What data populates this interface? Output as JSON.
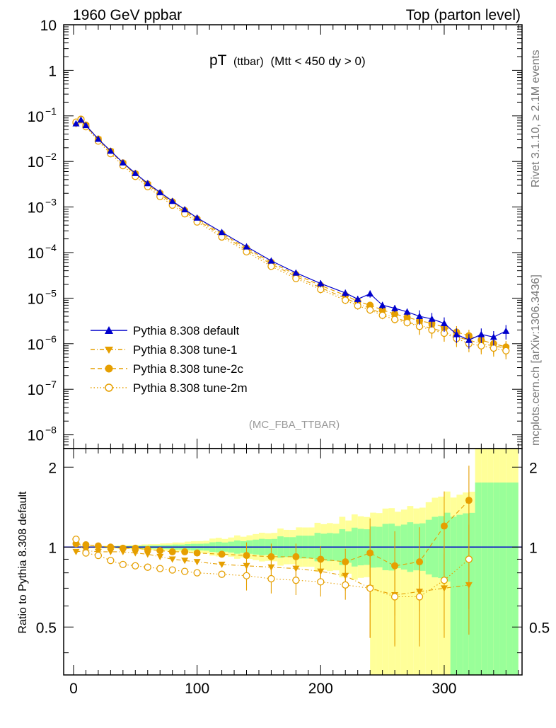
{
  "header": {
    "left": "1960 GeV ppbar",
    "right": "Top (parton level)"
  },
  "side_labels": {
    "rivet": "Rivet 3.1.10, ≥ 2.1M events",
    "mcplots": "mcplots.cern.ch [arXiv:1306.3436]"
  },
  "plot_title": {
    "main": "pT",
    "sub": "(ttbar)",
    "rest": "(Mtt < 450 dy > 0)"
  },
  "analysis_tag": "(MC_FBA_TTBAR)",
  "ratio_ylabel": "Ratio to Pythia 8.308 default",
  "colors": {
    "default": "#0000cc",
    "tunes": "#e69f00",
    "band_yellow": "#ffff99",
    "band_green": "#99ff99"
  },
  "chart_data": {
    "type": "scatter",
    "top_panel": {
      "yscale": "log",
      "ylim": [
        5e-09,
        10
      ],
      "yticks": [
        {
          "value": 10,
          "label": "10"
        },
        {
          "value": 1,
          "label": "1"
        },
        {
          "value": 0.1,
          "label": "10",
          "exp": "−1"
        },
        {
          "value": 0.01,
          "label": "10",
          "exp": "−2"
        },
        {
          "value": 0.001,
          "label": "10",
          "exp": "−3"
        },
        {
          "value": 0.0001,
          "label": "10",
          "exp": "−4"
        },
        {
          "value": 1e-05,
          "label": "10",
          "exp": "−5"
        },
        {
          "value": 1e-06,
          "label": "10",
          "exp": "−6"
        },
        {
          "value": 1e-07,
          "label": "10",
          "exp": "−7"
        },
        {
          "value": 1e-08,
          "label": "10",
          "exp": "−8"
        }
      ]
    },
    "ratio_panel": {
      "yscale": "log",
      "ylim": [
        0.33,
        2.35
      ],
      "yticks": [
        {
          "value": 0.5,
          "label": "0.5"
        },
        {
          "value": 1,
          "label": "1"
        },
        {
          "value": 2,
          "label": "2"
        }
      ]
    },
    "x": {
      "xlim": [
        -8,
        363
      ],
      "xticks": [
        {
          "value": 0,
          "label": "0"
        },
        {
          "value": 100,
          "label": "100"
        },
        {
          "value": 200,
          "label": "200"
        },
        {
          "value": 300,
          "label": "300"
        }
      ]
    },
    "legend_position": "lower-left",
    "series": [
      {
        "name": "Pythia 8.308 default",
        "key": "default",
        "marker": "triangle-up",
        "line": "solid",
        "values": [
          [
            2,
            0.068
          ],
          [
            6,
            0.082
          ],
          [
            10,
            0.062
          ],
          [
            20,
            0.031
          ],
          [
            30,
            0.017
          ],
          [
            40,
            0.0094
          ],
          [
            50,
            0.0055
          ],
          [
            60,
            0.0033
          ],
          [
            70,
            0.0021
          ],
          [
            80,
            0.00135
          ],
          [
            90,
            0.00088
          ],
          [
            100,
            0.00058
          ],
          [
            120,
            0.00028
          ],
          [
            140,
            0.000135
          ],
          [
            160,
            6.6e-05
          ],
          [
            180,
            3.6e-05
          ],
          [
            200,
            2.1e-05
          ],
          [
            220,
            1.3e-05
          ],
          [
            230,
            9.5e-06
          ],
          [
            240,
            1.25e-05
          ],
          [
            250,
            7e-06
          ],
          [
            260,
            6e-06
          ],
          [
            270,
            5e-06
          ],
          [
            280,
            4e-06
          ],
          [
            290,
            3.5e-06
          ],
          [
            300,
            2.8e-06
          ],
          [
            310,
            1.6e-06
          ],
          [
            320,
            1.2e-06
          ],
          [
            330,
            1.6e-06
          ],
          [
            340,
            1.4e-06
          ],
          [
            350,
            1.9e-06
          ]
        ]
      },
      {
        "name": "Pythia 8.308 tune-1",
        "key": "tune1",
        "marker": "triangle-down",
        "line": "dashdot",
        "values": [
          [
            2,
            0.066
          ],
          [
            6,
            0.079
          ],
          [
            10,
            0.06
          ],
          [
            20,
            0.03
          ],
          [
            30,
            0.0164
          ],
          [
            40,
            0.009
          ],
          [
            50,
            0.0052
          ],
          [
            60,
            0.0031
          ],
          [
            70,
            0.0019
          ],
          [
            80,
            0.0012
          ],
          [
            90,
            0.00078
          ],
          [
            100,
            0.00051
          ],
          [
            120,
            0.00024
          ],
          [
            140,
            0.000115
          ],
          [
            160,
            5.6e-05
          ],
          [
            180,
            3e-05
          ],
          [
            200,
            1.7e-05
          ],
          [
            220,
            1e-05
          ],
          [
            230,
            7.5e-06
          ],
          [
            240,
            6e-06
          ],
          [
            250,
            4.5e-06
          ],
          [
            260,
            3.8e-06
          ],
          [
            270,
            3e-06
          ],
          [
            280,
            2.5e-06
          ],
          [
            290,
            2.2e-06
          ],
          [
            300,
            1.8e-06
          ],
          [
            310,
            1.4e-06
          ],
          [
            320,
            1.2e-06
          ],
          [
            330,
            1e-06
          ],
          [
            340,
            9e-07
          ],
          [
            350,
            8e-07
          ]
        ]
      },
      {
        "name": "Pythia 8.308 tune-2c",
        "key": "tune2c",
        "marker": "circle-filled",
        "line": "dashed",
        "values": [
          [
            2,
            0.07
          ],
          [
            6,
            0.085
          ],
          [
            10,
            0.063
          ],
          [
            20,
            0.031
          ],
          [
            30,
            0.0168
          ],
          [
            40,
            0.0093
          ],
          [
            50,
            0.0054
          ],
          [
            60,
            0.0032
          ],
          [
            70,
            0.002
          ],
          [
            80,
            0.0013
          ],
          [
            90,
            0.00084
          ],
          [
            100,
            0.00055
          ],
          [
            120,
            0.00026
          ],
          [
            140,
            0.000125
          ],
          [
            160,
            6.1e-05
          ],
          [
            180,
            3.3e-05
          ],
          [
            200,
            1.9e-05
          ],
          [
            220,
            1.15e-05
          ],
          [
            230,
            8.5e-06
          ],
          [
            240,
            7e-06
          ],
          [
            250,
            5.5e-06
          ],
          [
            260,
            4.5e-06
          ],
          [
            270,
            3.8e-06
          ],
          [
            280,
            3.2e-06
          ],
          [
            290,
            2.8e-06
          ],
          [
            300,
            2.3e-06
          ],
          [
            310,
            1.8e-06
          ],
          [
            320,
            1.5e-06
          ],
          [
            330,
            1.2e-06
          ],
          [
            340,
            1e-06
          ],
          [
            350,
            8.5e-07
          ]
        ]
      },
      {
        "name": "Pythia 8.308 tune-2m",
        "key": "tune2m",
        "marker": "circle-open",
        "line": "dotted",
        "values": [
          [
            2,
            0.073
          ],
          [
            6,
            0.083
          ],
          [
            10,
            0.058
          ],
          [
            20,
            0.028
          ],
          [
            30,
            0.0148
          ],
          [
            40,
            0.0081
          ],
          [
            50,
            0.0047
          ],
          [
            60,
            0.0028
          ],
          [
            70,
            0.0017
          ],
          [
            80,
            0.0011
          ],
          [
            90,
            0.00071
          ],
          [
            100,
            0.00047
          ],
          [
            120,
            0.00022
          ],
          [
            140,
            0.000104
          ],
          [
            160,
            5e-05
          ],
          [
            180,
            2.7e-05
          ],
          [
            200,
            1.55e-05
          ],
          [
            220,
            9e-06
          ],
          [
            230,
            6.8e-06
          ],
          [
            240,
            5.5e-06
          ],
          [
            250,
            4.2e-06
          ],
          [
            260,
            3.4e-06
          ],
          [
            270,
            2.9e-06
          ],
          [
            280,
            2.4e-06
          ],
          [
            290,
            2e-06
          ],
          [
            300,
            1.7e-06
          ],
          [
            310,
            1.3e-06
          ],
          [
            320,
            1e-06
          ],
          [
            330,
            9e-07
          ],
          [
            340,
            8e-07
          ],
          [
            350,
            7e-07
          ]
        ]
      }
    ],
    "ratio_series": [
      {
        "key": "tune1",
        "values": [
          [
            2,
            0.96
          ],
          [
            10,
            0.97
          ],
          [
            20,
            0.96
          ],
          [
            30,
            0.96
          ],
          [
            40,
            0.96
          ],
          [
            50,
            0.95
          ],
          [
            60,
            0.94
          ],
          [
            70,
            0.92
          ],
          [
            80,
            0.9
          ],
          [
            90,
            0.89
          ],
          [
            100,
            0.88
          ],
          [
            120,
            0.86
          ],
          [
            140,
            0.85
          ],
          [
            160,
            0.84
          ],
          [
            180,
            0.83
          ],
          [
            200,
            0.81
          ],
          [
            220,
            0.78
          ],
          [
            240,
            0.7
          ],
          [
            260,
            0.66
          ],
          [
            280,
            0.68
          ],
          [
            300,
            0.7
          ],
          [
            320,
            0.72
          ]
        ]
      },
      {
        "key": "tune2c",
        "values": [
          [
            2,
            1.03
          ],
          [
            10,
            1.02
          ],
          [
            20,
            1.01
          ],
          [
            30,
            1.0
          ],
          [
            40,
            0.99
          ],
          [
            50,
            0.99
          ],
          [
            60,
            0.98
          ],
          [
            70,
            0.97
          ],
          [
            80,
            0.96
          ],
          [
            90,
            0.96
          ],
          [
            100,
            0.95
          ],
          [
            120,
            0.94
          ],
          [
            140,
            0.93
          ],
          [
            160,
            0.92
          ],
          [
            180,
            0.92
          ],
          [
            200,
            0.9
          ],
          [
            220,
            0.88
          ],
          [
            240,
            0.95
          ],
          [
            260,
            0.85
          ],
          [
            280,
            0.88
          ],
          [
            300,
            1.2
          ],
          [
            320,
            1.5
          ]
        ]
      },
      {
        "key": "tune2m",
        "values": [
          [
            2,
            1.07
          ],
          [
            10,
            0.95
          ],
          [
            20,
            0.93
          ],
          [
            30,
            0.89
          ],
          [
            40,
            0.86
          ],
          [
            50,
            0.85
          ],
          [
            60,
            0.84
          ],
          [
            70,
            0.83
          ],
          [
            80,
            0.82
          ],
          [
            90,
            0.81
          ],
          [
            100,
            0.8
          ],
          [
            120,
            0.79
          ],
          [
            140,
            0.78
          ],
          [
            160,
            0.76
          ],
          [
            180,
            0.75
          ],
          [
            200,
            0.74
          ],
          [
            220,
            0.72
          ],
          [
            240,
            0.7
          ],
          [
            260,
            0.65
          ],
          [
            280,
            0.65
          ],
          [
            300,
            0.75
          ],
          [
            320,
            0.9
          ]
        ]
      }
    ]
  }
}
